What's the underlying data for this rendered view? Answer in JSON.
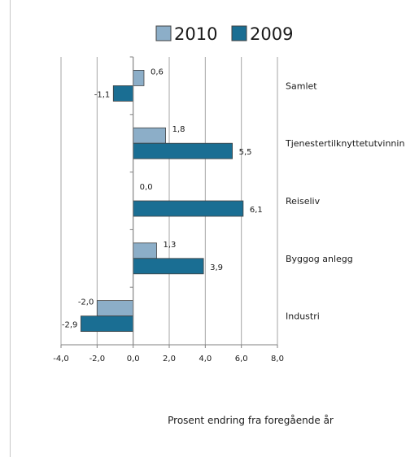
{
  "chart_data": {
    "type": "bar",
    "orientation": "horizontal",
    "categories": [
      "Industri",
      "Bygg og anlegg",
      "Reiseliv",
      "Tjenester tilknyttet utvinning",
      "Samlet"
    ],
    "category_labels_shown": [
      "Industri",
      "Byggog anlegg",
      "Reiseliv",
      "Tjenestertilknyttetutvinnin",
      "Samlet"
    ],
    "series": [
      {
        "name": "2010",
        "color": "#8caec8",
        "values": [
          -2.0,
          1.3,
          0.0,
          1.8,
          0.6
        ],
        "labels": [
          "-2,0",
          "1,3",
          "0,0",
          "1,8",
          "0,6"
        ]
      },
      {
        "name": "2009",
        "color": "#1a6e93",
        "values": [
          -2.9,
          3.9,
          6.1,
          5.5,
          -1.1
        ],
        "labels": [
          "-2,9",
          "3,9",
          "6,1",
          "5,5",
          "-1,1"
        ]
      }
    ],
    "xlim": [
      -4,
      8
    ],
    "xticks": [
      -4,
      -2,
      0,
      2,
      4,
      6,
      8
    ],
    "xtick_labels": [
      "-4,0",
      "-2,0",
      "0,0",
      "2,0",
      "4,0",
      "6,0",
      "8,0"
    ],
    "xlabel": "Prosent endring  fra foregående år",
    "ylabel": "",
    "title": "",
    "legend_position": "top",
    "grid": "vertical",
    "colors": {
      "grid": "#a6a6a6",
      "axis": "#808080",
      "bar_outline": "#404040"
    }
  }
}
